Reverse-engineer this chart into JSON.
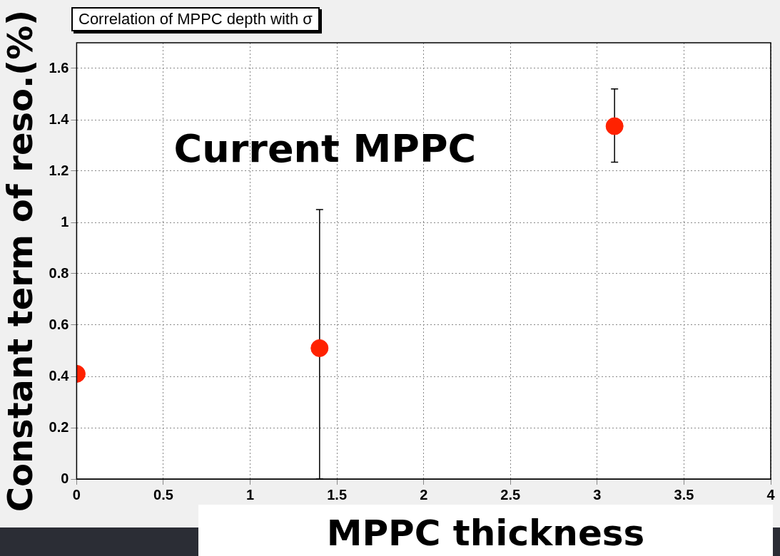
{
  "chart_data": {
    "type": "scatter",
    "title": "Correlation of MPPC depth with σ",
    "xlabel": "MPPC thickness",
    "ylabel": "Constant term of reso.(%)",
    "x": [
      0,
      1.4,
      3.1
    ],
    "series": [
      {
        "color": "#ff2200",
        "values": [
          0.41,
          0.51,
          1.375
        ],
        "errors": [
          null,
          [
            0,
            1.05
          ],
          [
            1.235,
            1.52
          ]
        ]
      }
    ],
    "xlim": [
      0,
      4
    ],
    "xticks": [
      0,
      0.5,
      1,
      1.5,
      2,
      2.5,
      3,
      3.5,
      4
    ],
    "ylim": [
      0,
      1.7
    ],
    "yticks": [
      0,
      0.2,
      0.4,
      0.6,
      0.8,
      1,
      1.2,
      1.4,
      1.6
    ],
    "grid": true,
    "marker": "circle",
    "legend": false,
    "annotations": [
      "Current MPPC"
    ]
  }
}
